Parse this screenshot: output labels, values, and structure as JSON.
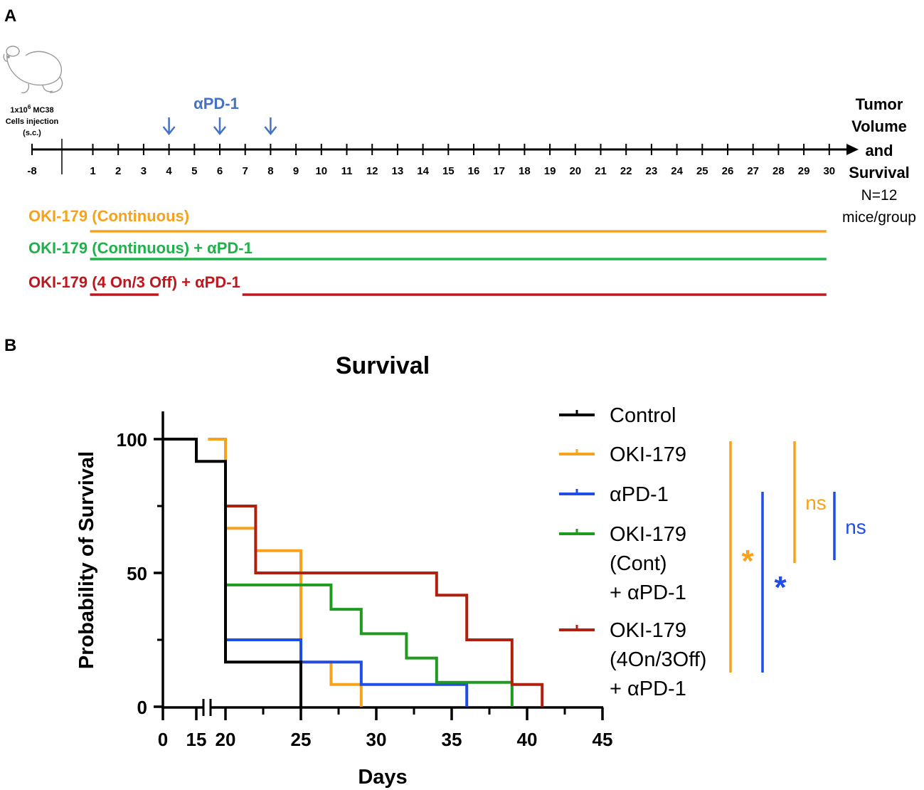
{
  "panel_a": {
    "label": "A",
    "injection": {
      "line1a": "1x10",
      "line1sup": "6",
      "line1b": " MC38",
      "line2": "Cells injection",
      "line3": "(s.c.)"
    },
    "apd1_label": "αPD-1",
    "apd1_days": [
      4,
      6,
      8
    ],
    "timeline_days": [
      -8,
      1,
      2,
      3,
      4,
      5,
      6,
      7,
      8,
      9,
      10,
      11,
      12,
      13,
      14,
      15,
      16,
      17,
      18,
      19,
      20,
      21,
      22,
      23,
      24,
      25,
      26,
      27,
      28,
      29,
      30
    ],
    "endpoint": {
      "l1": "Tumor",
      "l2": "Volume",
      "l3": "and",
      "l4": "Survival",
      "l5": "N=12",
      "l6": "mice/group"
    },
    "arms": [
      {
        "label": "OKI-179 (Continuous)",
        "color": "#F7A21B",
        "segments": [
          [
            1,
            30
          ]
        ]
      },
      {
        "label": "OKI-179 (Continuous) + αPD-1",
        "color": "#1DB34A",
        "segments": [
          [
            1,
            30
          ]
        ]
      },
      {
        "label": "OKI-179 (4 On/3 Off) + αPD-1",
        "color": "#C0171F",
        "segments": [
          [
            1,
            3.7
          ],
          [
            7,
            30
          ]
        ]
      }
    ],
    "apd1_color": "#4472C4"
  },
  "panel_b": {
    "label": "B"
  },
  "chart_data": {
    "type": "line",
    "step": true,
    "title": "Survival",
    "xlabel": "Days",
    "ylabel": "Probability of Survival",
    "x_ticks": [
      "0",
      "15",
      "20",
      "25",
      "30",
      "35",
      "40",
      "45"
    ],
    "y_ticks": [
      "0",
      "50",
      "100"
    ],
    "x_axis_break": [
      0,
      20
    ],
    "xlim": [
      0,
      45
    ],
    "ylim": [
      0,
      110
    ],
    "series": [
      {
        "name": "Control",
        "color": "#000000",
        "points": [
          [
            0,
            100
          ],
          [
            15,
            100
          ],
          [
            15,
            91.7
          ],
          [
            20,
            91.7
          ],
          [
            20,
            16.7
          ],
          [
            25,
            16.7
          ],
          [
            25,
            0
          ]
        ]
      },
      {
        "name": "OKI-179",
        "color": "#F7A21B",
        "points": [
          [
            17,
            100
          ],
          [
            20,
            100
          ],
          [
            20,
            66.7
          ],
          [
            22,
            66.7
          ],
          [
            22,
            58.3
          ],
          [
            25,
            58.3
          ],
          [
            25,
            16.7
          ],
          [
            27,
            16.7
          ],
          [
            27,
            8.3
          ],
          [
            29,
            8.3
          ],
          [
            29,
            0
          ]
        ]
      },
      {
        "name": "αPD-1",
        "color": "#1F4DE5",
        "points": [
          [
            20,
            25
          ],
          [
            25,
            25
          ],
          [
            25,
            16.7
          ],
          [
            29,
            16.7
          ],
          [
            29,
            8.3
          ],
          [
            36,
            8.3
          ],
          [
            36,
            0
          ]
        ]
      },
      {
        "name": "OKI-179 (Cont) + αPD-1",
        "color": "#1E9A1E",
        "points": [
          [
            20,
            45.5
          ],
          [
            27,
            45.5
          ],
          [
            27,
            36.4
          ],
          [
            29,
            36.4
          ],
          [
            29,
            27.3
          ],
          [
            32,
            27.3
          ],
          [
            32,
            18.2
          ],
          [
            34,
            18.2
          ],
          [
            34,
            9.1
          ],
          [
            39,
            9.1
          ],
          [
            39,
            0
          ]
        ]
      },
      {
        "name": "OKI-179 (4On/3Off) + αPD-1",
        "color": "#B0200E",
        "points": [
          [
            20,
            75
          ],
          [
            22,
            75
          ],
          [
            22,
            50
          ],
          [
            34,
            50
          ],
          [
            34,
            41.7
          ],
          [
            36,
            41.7
          ],
          [
            36,
            25
          ],
          [
            39,
            25
          ],
          [
            39,
            8.3
          ],
          [
            41,
            8.3
          ],
          [
            41,
            0
          ]
        ]
      }
    ],
    "legend": {
      "position": "right",
      "entries": [
        {
          "lines": [
            "Control"
          ],
          "color": "#000000"
        },
        {
          "lines": [
            "OKI-179"
          ],
          "color": "#F7A21B"
        },
        {
          "lines": [
            "αPD-1"
          ],
          "color": "#1F4DE5"
        },
        {
          "lines": [
            "OKI-179",
            "(Cont)",
            "+ αPD-1"
          ],
          "color": "#1E9A1E"
        },
        {
          "lines": [
            "OKI-179",
            "(4On/3Off)",
            "+ αPD-1"
          ],
          "color": "#B0200E"
        }
      ]
    },
    "significance": [
      {
        "label": "*",
        "color": "#F7A21B"
      },
      {
        "label": "*",
        "color": "#1F4DE5"
      },
      {
        "label": "ns",
        "color": "#F7A21B"
      },
      {
        "label": "ns",
        "color": "#1F4DE5"
      }
    ]
  }
}
